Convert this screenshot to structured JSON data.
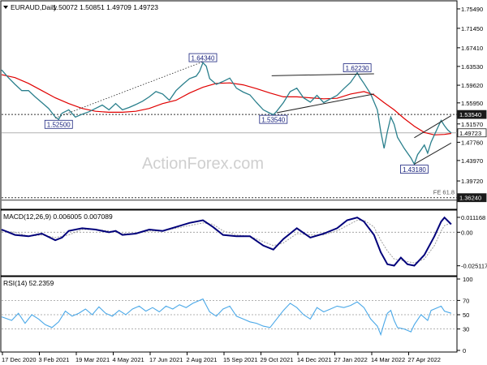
{
  "chart_data": {
    "type": "line",
    "symbol_label": "EURAUD,Daily",
    "ohlc_text": "1.50072 1.50851 1.49709 1.49723",
    "watermark": "ActionForex.com",
    "x_ticks": [
      "17 Dec 2020",
      "3 Feb 2021",
      "19 Mar 2021",
      "4 May 2021",
      "17 Jun 2021",
      "2 Aug 2021",
      "15 Sep 2021",
      "29 Oct 2021",
      "14 Dec 2021",
      "27 Jan 2022",
      "14 Mar 2022",
      "27 Apr 2022"
    ],
    "main": {
      "ylim": [
        1.34,
        1.77
      ],
      "y_ticks": [
        "1.75490",
        "1.71450",
        "1.67410",
        "1.63530",
        "1.59620",
        "1.55950",
        "1.51570",
        "1.47760",
        "1.43970",
        "1.39720"
      ],
      "price": [
        [
          0,
          1.628
        ],
        [
          4,
          1.612
        ],
        [
          8,
          1.598
        ],
        [
          12,
          1.585
        ],
        [
          16,
          1.585
        ],
        [
          20,
          1.572
        ],
        [
          24,
          1.56
        ],
        [
          28,
          1.548
        ],
        [
          32,
          1.53
        ],
        [
          34,
          1.525
        ],
        [
          36,
          1.538
        ],
        [
          40,
          1.545
        ],
        [
          44,
          1.53
        ],
        [
          48,
          1.536
        ],
        [
          52,
          1.541
        ],
        [
          56,
          1.548
        ],
        [
          60,
          1.555
        ],
        [
          64,
          1.545
        ],
        [
          68,
          1.558
        ],
        [
          72,
          1.545
        ],
        [
          76,
          1.55
        ],
        [
          80,
          1.556
        ],
        [
          84,
          1.563
        ],
        [
          88,
          1.572
        ],
        [
          92,
          1.583
        ],
        [
          96,
          1.578
        ],
        [
          100,
          1.565
        ],
        [
          104,
          1.585
        ],
        [
          108,
          1.598
        ],
        [
          112,
          1.61
        ],
        [
          116,
          1.615
        ],
        [
          118,
          1.625
        ],
        [
          120,
          1.643
        ],
        [
          122,
          1.636
        ],
        [
          124,
          1.61
        ],
        [
          128,
          1.598
        ],
        [
          132,
          1.604
        ],
        [
          136,
          1.611
        ],
        [
          140,
          1.59
        ],
        [
          144,
          1.582
        ],
        [
          148,
          1.576
        ],
        [
          152,
          1.56
        ],
        [
          156,
          1.545
        ],
        [
          160,
          1.538
        ],
        [
          162,
          1.535
        ],
        [
          164,
          1.542
        ],
        [
          168,
          1.56
        ],
        [
          172,
          1.583
        ],
        [
          176,
          1.59
        ],
        [
          180,
          1.57
        ],
        [
          184,
          1.561
        ],
        [
          188,
          1.575
        ],
        [
          192,
          1.56
        ],
        [
          196,
          1.568
        ],
        [
          200,
          1.575
        ],
        [
          204,
          1.589
        ],
        [
          208,
          1.602
        ],
        [
          212,
          1.622
        ],
        [
          214,
          1.61
        ],
        [
          216,
          1.6
        ],
        [
          220,
          1.578
        ],
        [
          224,
          1.545
        ],
        [
          226,
          1.5
        ],
        [
          228,
          1.465
        ],
        [
          230,
          1.5
        ],
        [
          232,
          1.53
        ],
        [
          234,
          1.515
        ],
        [
          236,
          1.488
        ],
        [
          240,
          1.465
        ],
        [
          242,
          1.455
        ],
        [
          244,
          1.445
        ],
        [
          246,
          1.432
        ],
        [
          248,
          1.452
        ],
        [
          250,
          1.462
        ],
        [
          252,
          1.472
        ],
        [
          254,
          1.455
        ],
        [
          256,
          1.478
        ],
        [
          258,
          1.493
        ],
        [
          260,
          1.508
        ],
        [
          262,
          1.523
        ],
        [
          264,
          1.512
        ],
        [
          266,
          1.503
        ],
        [
          268,
          1.497
        ]
      ],
      "ma": [
        [
          0,
          1.618
        ],
        [
          8,
          1.612
        ],
        [
          16,
          1.6
        ],
        [
          24,
          1.585
        ],
        [
          32,
          1.57
        ],
        [
          40,
          1.558
        ],
        [
          48,
          1.548
        ],
        [
          56,
          1.542
        ],
        [
          64,
          1.54
        ],
        [
          72,
          1.54
        ],
        [
          80,
          1.542
        ],
        [
          88,
          1.548
        ],
        [
          96,
          1.558
        ],
        [
          104,
          1.565
        ],
        [
          112,
          1.58
        ],
        [
          120,
          1.592
        ],
        [
          128,
          1.6
        ],
        [
          136,
          1.601
        ],
        [
          144,
          1.597
        ],
        [
          152,
          1.589
        ],
        [
          160,
          1.58
        ],
        [
          168,
          1.572
        ],
        [
          176,
          1.572
        ],
        [
          184,
          1.57
        ],
        [
          192,
          1.568
        ],
        [
          200,
          1.569
        ],
        [
          208,
          1.578
        ],
        [
          216,
          1.583
        ],
        [
          222,
          1.576
        ],
        [
          228,
          1.56
        ],
        [
          234,
          1.545
        ],
        [
          240,
          1.527
        ],
        [
          246,
          1.511
        ],
        [
          252,
          1.498
        ],
        [
          258,
          1.493
        ],
        [
          264,
          1.494
        ],
        [
          268,
          1.496
        ]
      ],
      "trendlines": [
        {
          "x": [
            32,
            120
          ],
          "y": [
            1.528,
            1.645
          ],
          "style": "dotted"
        },
        {
          "x": [
            164,
            222
          ],
          "y": [
            1.539,
            1.578
          ],
          "style": "solid"
        },
        {
          "x": [
            161,
            222
          ],
          "y": [
            1.616,
            1.62
          ],
          "style": "solid"
        },
        {
          "x": [
            246,
            268
          ],
          "y": [
            1.432,
            1.476
          ],
          "style": "solid"
        },
        {
          "x": [
            246,
            268
          ],
          "y": [
            1.487,
            1.533
          ],
          "style": "solid"
        }
      ],
      "levels": [
        {
          "value": 1.5354,
          "label": "1.53540",
          "style": "dashed"
        },
        {
          "value": 1.49723,
          "label": "1.49723",
          "style": "solid"
        },
        {
          "value": 1.3624,
          "label": "1.36240",
          "style": "dashed",
          "note": "FE 61.8"
        }
      ],
      "annotations": [
        {
          "text": "1.52500",
          "x": 34,
          "value": 1.525
        },
        {
          "text": "1.64340",
          "x": 120,
          "value": 1.6434
        },
        {
          "text": "1.53540",
          "x": 162,
          "value": 1.5354
        },
        {
          "text": "1.62230",
          "x": 212,
          "value": 1.6223
        },
        {
          "text": "1.43180",
          "x": 246,
          "value": 1.4318
        }
      ]
    },
    "macd": {
      "label": "MACD(12,26,9) 0.006005 0.007089",
      "ylim": [
        -0.032,
        0.016
      ],
      "y_ticks": [
        "0.011168",
        "0.00",
        "-0.025117"
      ],
      "macd_line": [
        [
          0,
          0.002
        ],
        [
          8,
          -0.002
        ],
        [
          16,
          -0.003
        ],
        [
          24,
          -0.001
        ],
        [
          32,
          -0.006
        ],
        [
          36,
          -0.004
        ],
        [
          40,
          0.001
        ],
        [
          48,
          0.003
        ],
        [
          56,
          0.002
        ],
        [
          64,
          0.0
        ],
        [
          68,
          0.001
        ],
        [
          72,
          -0.002
        ],
        [
          80,
          -0.001
        ],
        [
          88,
          0.002
        ],
        [
          96,
          0.001
        ],
        [
          104,
          0.004
        ],
        [
          112,
          0.007
        ],
        [
          120,
          0.009
        ],
        [
          126,
          0.004
        ],
        [
          132,
          -0.002
        ],
        [
          140,
          -0.003
        ],
        [
          148,
          -0.003
        ],
        [
          156,
          -0.01
        ],
        [
          162,
          -0.013
        ],
        [
          168,
          -0.005
        ],
        [
          176,
          0.003
        ],
        [
          184,
          -0.004
        ],
        [
          192,
          -0.001
        ],
        [
          200,
          0.003
        ],
        [
          206,
          0.009
        ],
        [
          212,
          0.011
        ],
        [
          216,
          0.008
        ],
        [
          222,
          -0.002
        ],
        [
          226,
          -0.015
        ],
        [
          230,
          -0.024
        ],
        [
          234,
          -0.025
        ],
        [
          238,
          -0.019
        ],
        [
          242,
          -0.024
        ],
        [
          246,
          -0.025
        ],
        [
          252,
          -0.017
        ],
        [
          258,
          -0.003
        ],
        [
          262,
          0.008
        ],
        [
          264,
          0.011
        ],
        [
          268,
          0.006
        ]
      ],
      "signal_line": [
        [
          0,
          0.001
        ],
        [
          8,
          0.0
        ],
        [
          16,
          -0.003
        ],
        [
          24,
          -0.002
        ],
        [
          32,
          -0.004
        ],
        [
          40,
          -0.002
        ],
        [
          48,
          0.002
        ],
        [
          56,
          0.002
        ],
        [
          64,
          0.001
        ],
        [
          72,
          -0.001
        ],
        [
          80,
          -0.001
        ],
        [
          88,
          0.001
        ],
        [
          96,
          0.001
        ],
        [
          104,
          0.003
        ],
        [
          112,
          0.005
        ],
        [
          120,
          0.007
        ],
        [
          126,
          0.006
        ],
        [
          132,
          0.001
        ],
        [
          140,
          -0.002
        ],
        [
          148,
          -0.003
        ],
        [
          156,
          -0.007
        ],
        [
          162,
          -0.01
        ],
        [
          168,
          -0.008
        ],
        [
          176,
          -0.001
        ],
        [
          184,
          -0.002
        ],
        [
          192,
          -0.002
        ],
        [
          200,
          0.001
        ],
        [
          206,
          0.005
        ],
        [
          212,
          0.009
        ],
        [
          216,
          0.009
        ],
        [
          222,
          0.004
        ],
        [
          226,
          -0.006
        ],
        [
          230,
          -0.014
        ],
        [
          234,
          -0.02
        ],
        [
          238,
          -0.021
        ],
        [
          242,
          -0.022
        ],
        [
          246,
          -0.023
        ],
        [
          252,
          -0.02
        ],
        [
          258,
          -0.01
        ],
        [
          262,
          0.001
        ],
        [
          264,
          0.005
        ],
        [
          268,
          0.007
        ]
      ]
    },
    "rsi": {
      "label": "RSI(14) 52.2359",
      "ylim": [
        0,
        100
      ],
      "y_ticks": [
        "100",
        "70",
        "50",
        "30",
        "0"
      ],
      "line": [
        [
          0,
          47
        ],
        [
          6,
          42
        ],
        [
          10,
          52
        ],
        [
          14,
          38
        ],
        [
          18,
          50
        ],
        [
          22,
          44
        ],
        [
          26,
          36
        ],
        [
          30,
          32
        ],
        [
          34,
          40
        ],
        [
          38,
          55
        ],
        [
          42,
          48
        ],
        [
          46,
          52
        ],
        [
          50,
          58
        ],
        [
          54,
          50
        ],
        [
          58,
          61
        ],
        [
          62,
          52
        ],
        [
          66,
          48
        ],
        [
          70,
          56
        ],
        [
          74,
          50
        ],
        [
          78,
          58
        ],
        [
          82,
          62
        ],
        [
          86,
          55
        ],
        [
          90,
          60
        ],
        [
          94,
          54
        ],
        [
          98,
          62
        ],
        [
          102,
          58
        ],
        [
          106,
          64
        ],
        [
          110,
          60
        ],
        [
          114,
          66
        ],
        [
          118,
          70
        ],
        [
          120,
          72
        ],
        [
          124,
          54
        ],
        [
          128,
          48
        ],
        [
          132,
          58
        ],
        [
          136,
          62
        ],
        [
          140,
          48
        ],
        [
          144,
          44
        ],
        [
          148,
          40
        ],
        [
          152,
          38
        ],
        [
          156,
          34
        ],
        [
          160,
          32
        ],
        [
          164,
          44
        ],
        [
          168,
          56
        ],
        [
          172,
          66
        ],
        [
          176,
          60
        ],
        [
          180,
          50
        ],
        [
          184,
          44
        ],
        [
          188,
          60
        ],
        [
          192,
          54
        ],
        [
          196,
          58
        ],
        [
          200,
          62
        ],
        [
          204,
          60
        ],
        [
          208,
          63
        ],
        [
          212,
          68
        ],
        [
          216,
          60
        ],
        [
          220,
          44
        ],
        [
          224,
          34
        ],
        [
          226,
          22
        ],
        [
          228,
          38
        ],
        [
          230,
          52
        ],
        [
          232,
          56
        ],
        [
          234,
          42
        ],
        [
          236,
          32
        ],
        [
          240,
          30
        ],
        [
          244,
          26
        ],
        [
          246,
          36
        ],
        [
          250,
          50
        ],
        [
          254,
          42
        ],
        [
          256,
          56
        ],
        [
          260,
          60
        ],
        [
          262,
          62
        ],
        [
          264,
          55
        ],
        [
          268,
          52
        ]
      ]
    }
  }
}
